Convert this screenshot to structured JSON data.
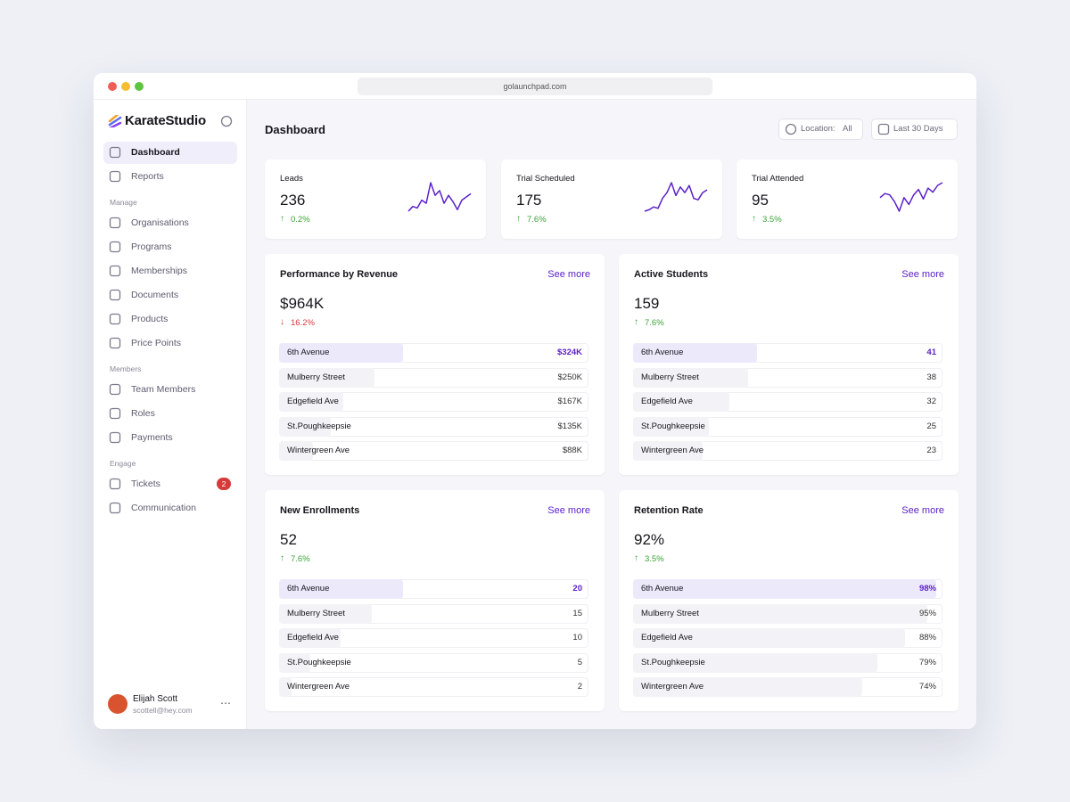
{
  "browser": {
    "url": "golaunchpad.com"
  },
  "sidebar": {
    "brand": "KarateStudio",
    "items": [
      {
        "label": "Dashboard",
        "active": true
      },
      {
        "label": "Reports"
      }
    ],
    "groups": [
      {
        "title": "Manage",
        "items": [
          {
            "label": "Organisations"
          },
          {
            "label": "Programs"
          },
          {
            "label": "Memberships"
          },
          {
            "label": "Documents"
          },
          {
            "label": "Products"
          },
          {
            "label": "Price Points"
          }
        ]
      },
      {
        "title": "Members",
        "items": [
          {
            "label": "Team Members"
          },
          {
            "label": "Roles"
          },
          {
            "label": "Payments"
          }
        ]
      },
      {
        "title": "Engage",
        "items": [
          {
            "label": "Tickets",
            "badge": "2"
          },
          {
            "label": "Communication"
          }
        ]
      }
    ],
    "user": {
      "name": "Elijah Scott",
      "email": "scottell@hey.com"
    }
  },
  "header": {
    "title": "Dashboard",
    "location_label": "Location:",
    "location_value": "All",
    "date_range": "Last 30 Days"
  },
  "kpis": [
    {
      "label": "Leads",
      "value": "236",
      "change": "0.2%",
      "direction": "up",
      "trend": [
        4,
        7,
        6,
        11,
        9,
        22,
        14,
        17,
        9,
        14,
        10,
        5,
        11,
        13,
        15
      ]
    },
    {
      "label": "Trial Scheduled",
      "value": "175",
      "change": "7.6%",
      "direction": "up",
      "trend": [
        3,
        4,
        6,
        5,
        12,
        16,
        23,
        14,
        20,
        16,
        21,
        12,
        11,
        16,
        18
      ]
    },
    {
      "label": "Trial Attended",
      "value": "95",
      "change": "3.5%",
      "direction": "up",
      "trend": [
        15,
        18,
        17,
        12,
        5,
        15,
        10,
        17,
        21,
        14,
        22,
        19,
        24,
        26
      ]
    }
  ],
  "panels": [
    {
      "title": "Performance by Revenue",
      "link": "See more",
      "value": "$964K",
      "change": "16.2%",
      "direction": "down",
      "scale": "relative",
      "rows": [
        {
          "name": "6th Avenue",
          "value": 324000,
          "value_label": "$324K"
        },
        {
          "name": "Mulberry Street",
          "value": 250000,
          "value_label": "$250K"
        },
        {
          "name": "Edgefield Ave",
          "value": 167000,
          "value_label": "$167K"
        },
        {
          "name": "St.Poughkeepsie",
          "value": 135000,
          "value_label": "$135K"
        },
        {
          "name": "Wintergreen Ave",
          "value": 88000,
          "value_label": "$88K"
        }
      ]
    },
    {
      "title": "Active Students",
      "link": "See more",
      "value": "159",
      "change": "7.6%",
      "direction": "up",
      "scale": "relative",
      "rows": [
        {
          "name": "6th Avenue",
          "value": 41
        },
        {
          "name": "Mulberry Street",
          "value": 38
        },
        {
          "name": "Edgefield Ave",
          "value": 32
        },
        {
          "name": "St.Poughkeepsie",
          "value": 25
        },
        {
          "name": "Wintergreen Ave",
          "value": 23
        }
      ]
    },
    {
      "title": "New Enrollments",
      "link": "See more",
      "value": "52",
      "change": "7.6%",
      "direction": "up",
      "scale": "relative",
      "rows": [
        {
          "name": "6th Avenue",
          "value": 20
        },
        {
          "name": "Mulberry Street",
          "value": 15
        },
        {
          "name": "Edgefield Ave",
          "value": 10
        },
        {
          "name": "St.Poughkeepsie",
          "value": 5
        },
        {
          "name": "Wintergreen Ave",
          "value": 2
        }
      ]
    },
    {
      "title": "Retention Rate",
      "link": "See more",
      "value": "92%",
      "change": "3.5%",
      "direction": "up",
      "scale": "percent",
      "rows": [
        {
          "name": "6th Avenue",
          "value": 98,
          "value_label": "98%"
        },
        {
          "name": "Mulberry Street",
          "value": 95,
          "value_label": "95%"
        },
        {
          "name": "Edgefield Ave",
          "value": 88,
          "value_label": "88%"
        },
        {
          "name": "St.Poughkeepsie",
          "value": 79,
          "value_label": "79%"
        },
        {
          "name": "Wintergreen Ave",
          "value": 74,
          "value_label": "74%"
        }
      ]
    }
  ]
}
